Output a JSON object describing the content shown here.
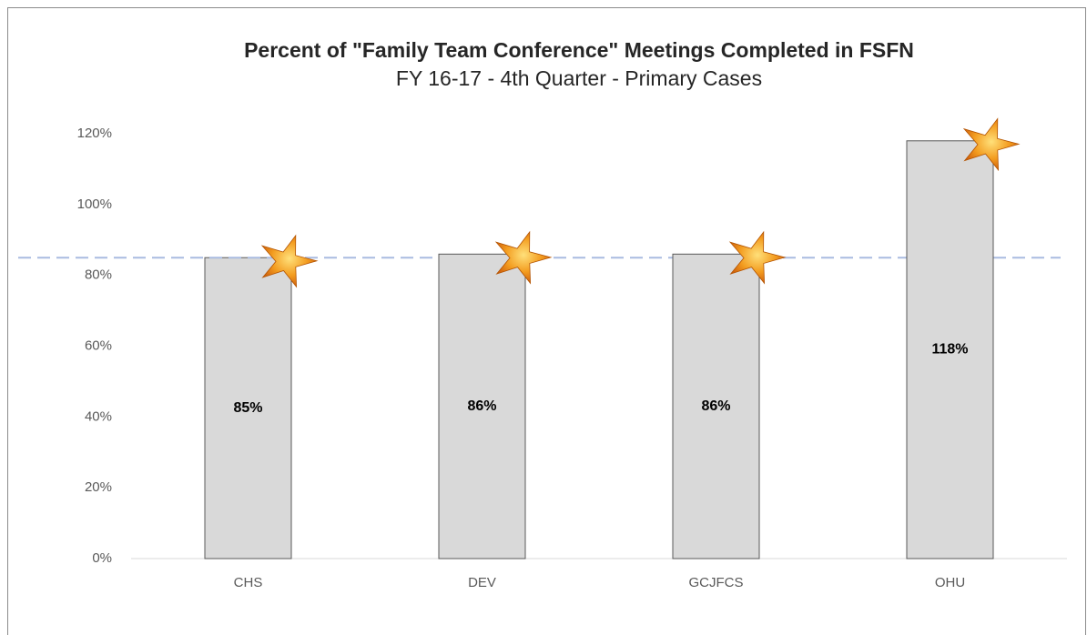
{
  "chart_data": {
    "type": "bar",
    "title": "Percent of \"Family Team Conference\" Meetings Completed in FSFN",
    "subtitle": "FY 16-17 - 4th Quarter - Primary Cases",
    "categories": [
      "CHS",
      "DEV",
      "GCJFCS",
      "OHU"
    ],
    "values": [
      85,
      86,
      86,
      118
    ],
    "value_labels": [
      "85%",
      "86%",
      "86%",
      "118%"
    ],
    "color": "#d9d9d9",
    "ylim": [
      0,
      120
    ],
    "yticks": [
      {
        "value": 0,
        "label": "0%"
      },
      {
        "value": 20,
        "label": "20%"
      },
      {
        "value": 40,
        "label": "40%"
      },
      {
        "value": 60,
        "label": "60%"
      },
      {
        "value": 80,
        "label": "80%"
      },
      {
        "value": 100,
        "label": "100%"
      },
      {
        "value": 120,
        "label": "120%"
      }
    ],
    "grid": false,
    "reference_line": {
      "value": 85,
      "color": "#a9bbe0"
    }
  }
}
